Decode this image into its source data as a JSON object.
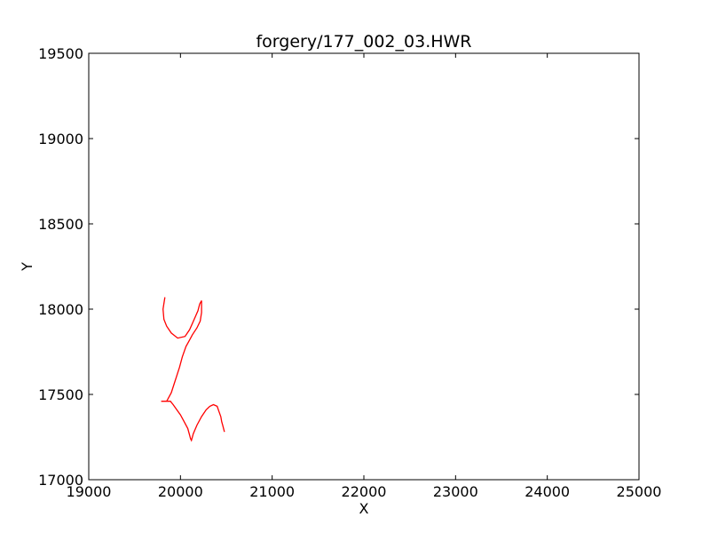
{
  "chart_data": {
    "type": "line",
    "title": "forgery/177_002_03.HWR",
    "xlabel": "X",
    "ylabel": "Y",
    "xlim": [
      19000,
      25000
    ],
    "ylim": [
      17000,
      19500
    ],
    "xticks": [
      "19000",
      "20000",
      "21000",
      "22000",
      "23000",
      "24000",
      "25000"
    ],
    "yticks": [
      "17000",
      "17500",
      "18000",
      "18500",
      "19000",
      "19500"
    ],
    "grid": false,
    "line_color": "#ff0000",
    "series": [
      {
        "x": [
          19830,
          19810,
          19820,
          19850,
          19900,
          19970,
          20050,
          20100,
          20150,
          20190,
          20210,
          20230,
          20230,
          20215,
          20180,
          20130,
          20100,
          20060,
          20020,
          19990,
          19960,
          19930,
          19900,
          19870,
          19850,
          19830,
          19800,
          19790,
          19800,
          19820,
          19840,
          19860,
          19870,
          19880,
          19890,
          19920,
          19960,
          20000,
          20040,
          20080,
          20100,
          20110,
          20120,
          20140,
          20180,
          20230,
          20280,
          20320,
          20360,
          20400,
          20420,
          20440,
          20450,
          20460,
          20470,
          20475,
          20480
        ],
        "y": [
          18070,
          18000,
          17940,
          17900,
          17860,
          17830,
          17840,
          17880,
          17940,
          17990,
          18030,
          18050,
          17980,
          17930,
          17890,
          17850,
          17820,
          17780,
          17720,
          17660,
          17610,
          17560,
          17510,
          17480,
          17460,
          17460,
          17460,
          17460,
          17460,
          17460,
          17460,
          17460,
          17460,
          17460,
          17460,
          17440,
          17410,
          17380,
          17340,
          17300,
          17260,
          17240,
          17230,
          17270,
          17320,
          17370,
          17410,
          17430,
          17440,
          17430,
          17400,
          17370,
          17340,
          17320,
          17300,
          17290,
          17280
        ]
      }
    ]
  }
}
